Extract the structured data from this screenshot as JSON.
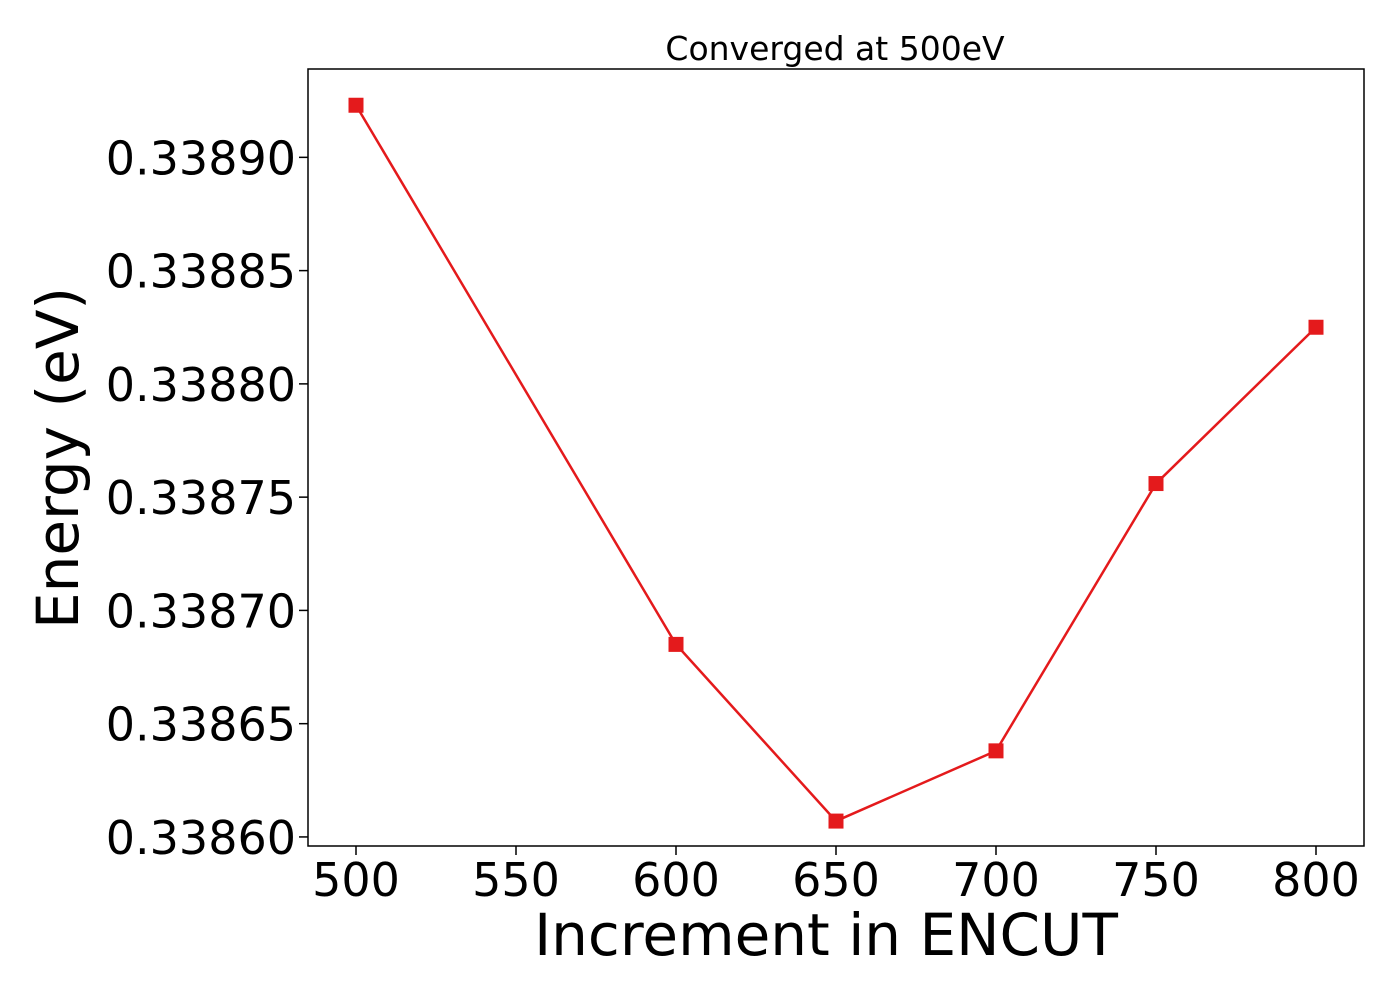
{
  "chart_data": {
    "type": "line",
    "title": "Converged at 500eV",
    "xlabel": "Increment in ENCUT",
    "ylabel": "Energy (eV)",
    "x": [
      500,
      600,
      650,
      700,
      750,
      800
    ],
    "series": [
      {
        "values": [
          0.338923,
          0.338685,
          0.338607,
          0.338638,
          0.338756,
          0.338825
        ],
        "color": "#e41a1c",
        "marker": "square"
      }
    ],
    "xticks": [
      "500",
      "550",
      "600",
      "650",
      "700",
      "750",
      "800"
    ],
    "xtick_values": [
      500,
      550,
      600,
      650,
      700,
      750,
      800
    ],
    "yticks": [
      "0.33860",
      "0.33865",
      "0.33870",
      "0.33875",
      "0.33880",
      "0.33885",
      "0.33890"
    ],
    "ytick_values": [
      0.3386,
      0.33865,
      0.3387,
      0.33875,
      0.3388,
      0.33885,
      0.3389
    ],
    "xlim": [
      485,
      815
    ],
    "ylim": [
      0.338596,
      0.338939
    ],
    "grid": false,
    "legend": "none"
  }
}
